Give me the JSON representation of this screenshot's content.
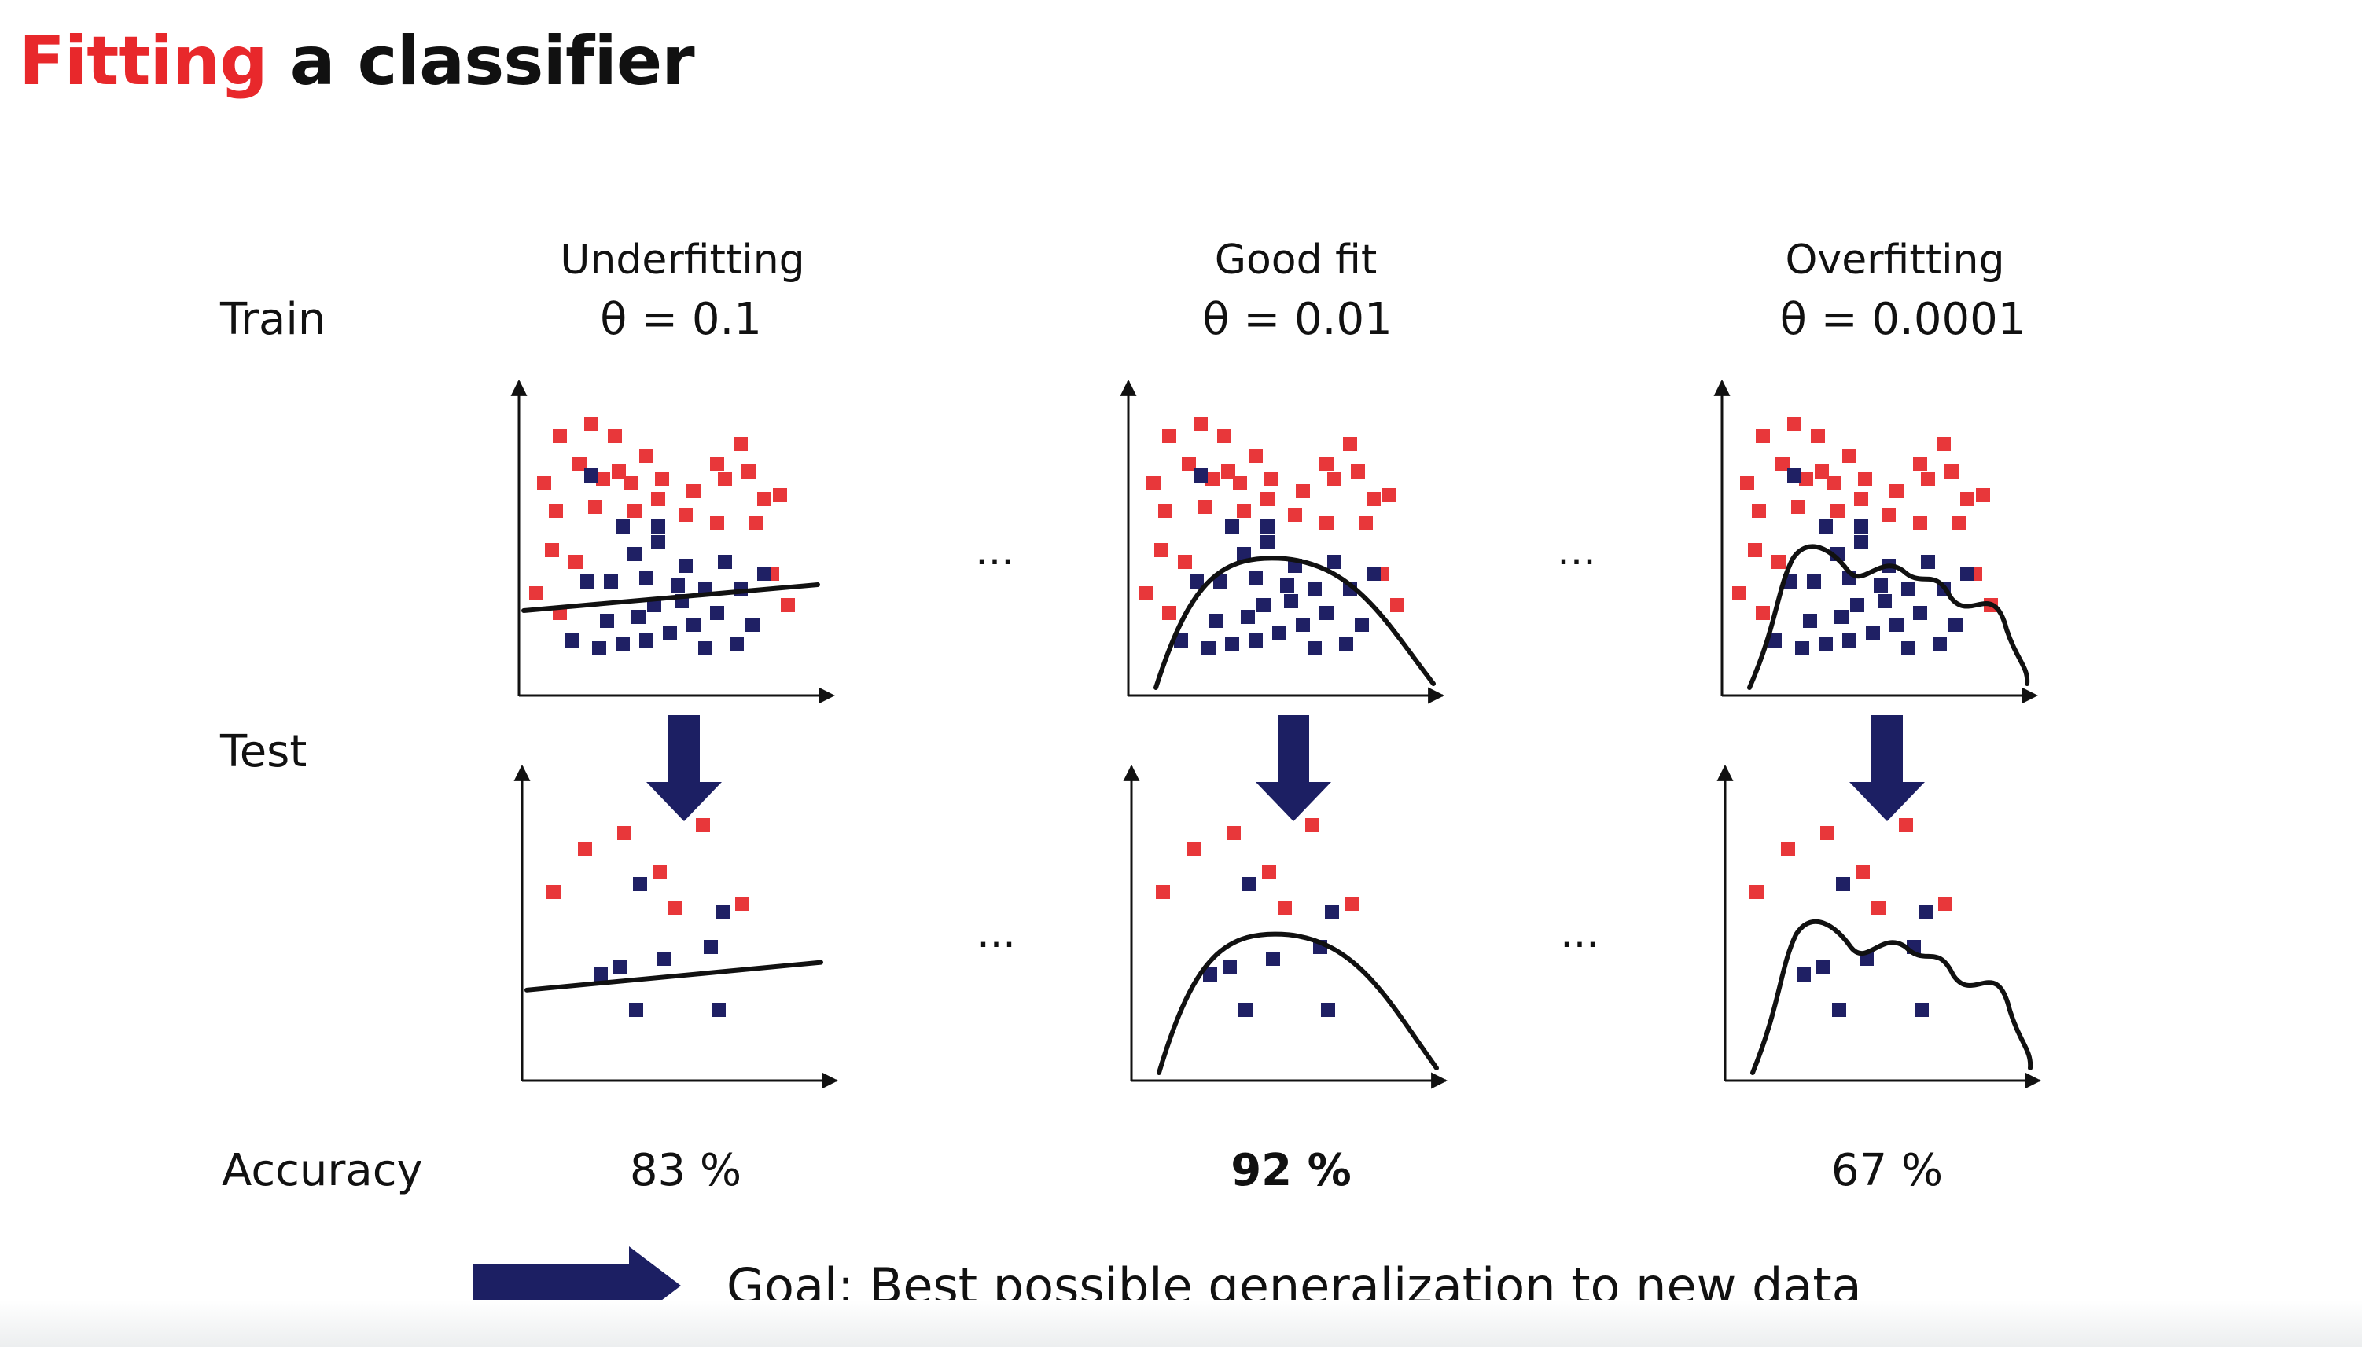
{
  "slide": {
    "title_accent": "Fitting",
    "title_rest": " a classifier"
  },
  "row_labels": {
    "train": "Train",
    "test": "Test",
    "accuracy": "Accuracy"
  },
  "columns": [
    {
      "name": "Underfitting",
      "theta": "θ = 0.1",
      "accuracy": "83 %",
      "highlight": false
    },
    {
      "name": "Good fit",
      "theta": "θ = 0.01",
      "accuracy": "92 %",
      "highlight": true
    },
    {
      "name": "Overfitting",
      "theta": "θ = 0.0001",
      "accuracy": "67 %",
      "highlight": false
    }
  ],
  "ellipsis": "...",
  "goal": "Goal: Best possible generalization to new data",
  "colors": {
    "accent": "#e8282b",
    "class_a": "#e8373a",
    "class_b": "#1f2064",
    "arrow": "#1c1f63",
    "ink": "#111111"
  }
}
